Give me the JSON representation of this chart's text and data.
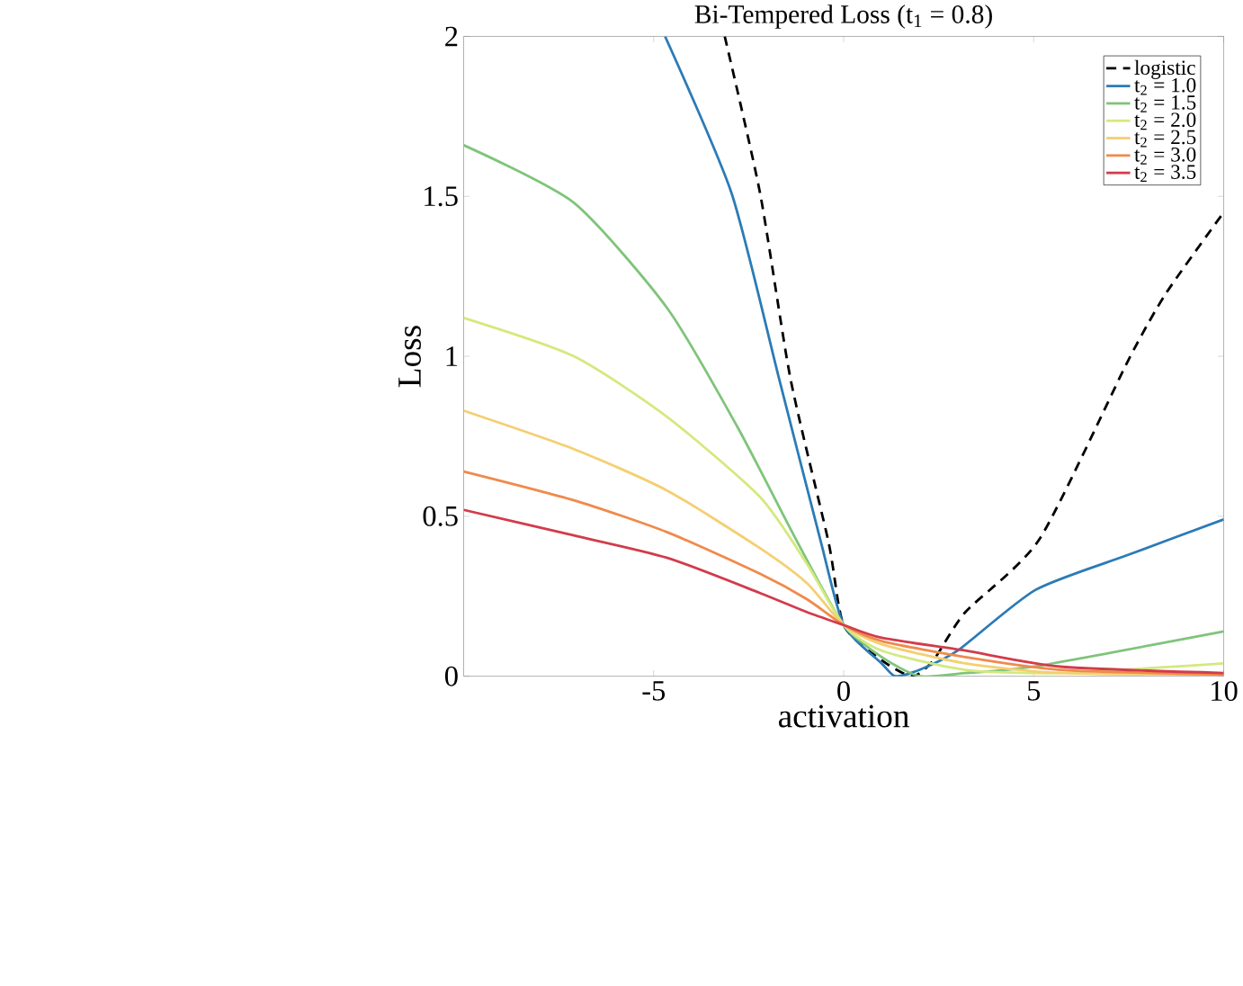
{
  "chart_data": {
    "type": "line",
    "title": "Bi-Tempered Loss (t$_{1}$ = 0.8)",
    "xlabel": "activation",
    "ylabel": "Loss",
    "xlim": [
      -10,
      10
    ],
    "ylim": [
      0,
      2
    ],
    "xticks": [
      -5,
      0,
      5,
      10
    ],
    "yticks": [
      0,
      0.5,
      1,
      1.5,
      2
    ],
    "grid": false,
    "legend": "top right",
    "marker": "none",
    "series": [
      {
        "name": "logistic",
        "color": "#000000",
        "line_style": "dashed",
        "x": [
          -3.13,
          -2.2,
          -1.4,
          -0.4,
          0,
          1,
          1.8,
          2.36,
          3.2,
          5.16,
          7.5,
          8.5,
          10
        ],
        "values": [
          2,
          1.51,
          0.93,
          0.42,
          0.16,
          0.05,
          0,
          0.05,
          0.2,
          0.43,
          0.99,
          1.2,
          1.45
        ]
      },
      {
        "name": "t$_{2}$ = 1.0",
        "color": "#2c7bb6",
        "line_style": "solid",
        "x": [
          -4.7,
          -2.95,
          -1.7,
          -0.6,
          0,
          1,
          1.36,
          2,
          3,
          5.05,
          7.5,
          10
        ],
        "values": [
          2,
          1.51,
          0.93,
          0.42,
          0.16,
          0.04,
          0,
          0.02,
          0.08,
          0.27,
          0.38,
          0.49
        ]
      },
      {
        "name": "t$_{2}$ = 1.5",
        "color": "#7fc47a",
        "line_style": "solid",
        "x": [
          -10,
          -7.1,
          -4.64,
          -2.8,
          -1.22,
          0,
          1,
          2,
          3.2,
          5,
          10
        ],
        "values": [
          1.66,
          1.48,
          1.15,
          0.78,
          0.42,
          0.16,
          0.06,
          0,
          0.01,
          0.03,
          0.14
        ]
      },
      {
        "name": "t$_{2}$ = 2.0",
        "color": "#d4e97e",
        "line_style": "solid",
        "x": [
          -10,
          -7.1,
          -4.64,
          -2.2,
          -0.96,
          0,
          1,
          3.2,
          5.7,
          10
        ],
        "values": [
          1.12,
          1.0,
          0.81,
          0.56,
          0.35,
          0.16,
          0.08,
          0.02,
          0.01,
          0.04
        ]
      },
      {
        "name": "t$_{2}$ = 2.5",
        "color": "#f4cf72",
        "line_style": "solid",
        "x": [
          -10,
          -7.1,
          -4.64,
          -2.2,
          -0.96,
          0,
          1,
          3.2,
          5.7,
          10
        ],
        "values": [
          0.83,
          0.71,
          0.58,
          0.4,
          0.29,
          0.16,
          0.1,
          0.04,
          0.01,
          0.005
        ]
      },
      {
        "name": "t$_{2}$ = 3.0",
        "color": "#f08a4b",
        "line_style": "solid",
        "x": [
          -10,
          -7.1,
          -4.64,
          -2.2,
          -0.96,
          0,
          1,
          3.2,
          5.7,
          10
        ],
        "values": [
          0.64,
          0.55,
          0.45,
          0.32,
          0.24,
          0.16,
          0.11,
          0.06,
          0.02,
          0.005
        ]
      },
      {
        "name": "t$_{2}$ = 3.5",
        "color": "#d13c4b",
        "line_style": "solid",
        "x": [
          -10,
          -7.1,
          -4.64,
          -2.2,
          -0.96,
          0,
          1,
          3.2,
          5.7,
          10
        ],
        "values": [
          0.52,
          0.44,
          0.37,
          0.26,
          0.2,
          0.16,
          0.12,
          0.08,
          0.03,
          0.01
        ]
      }
    ]
  }
}
